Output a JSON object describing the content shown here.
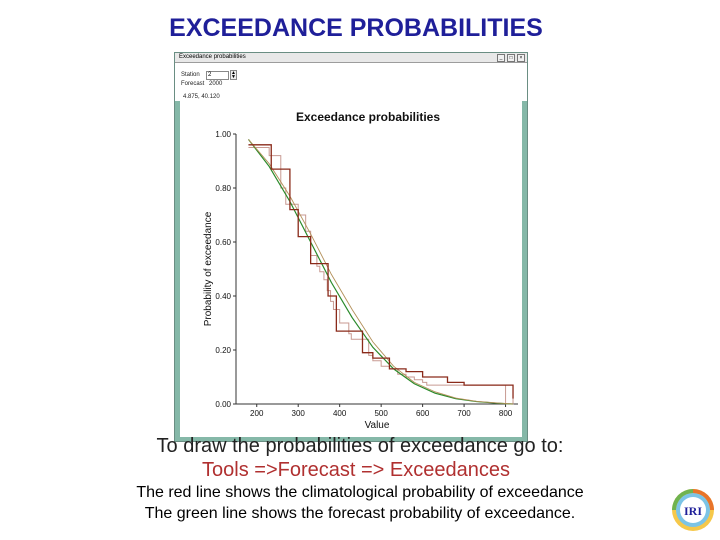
{
  "slide": {
    "title": "EXCEEDANCE PROBABILITIES",
    "instruction": "To draw the probabilities of exceedance go to:",
    "menu_path": "Tools =>Forecast => Exceedances",
    "note_red": "The red line shows the climatological probability of exceedance",
    "note_green": "The green line shows the forecast probability of exceedance."
  },
  "window": {
    "title": "Exceedance probabilities",
    "station_label": "Station",
    "station_value": "2",
    "forecast_label": "Forecast",
    "forecast_value": "2000",
    "coords": "4.875, 40.120"
  },
  "logo_text": "IRI",
  "colors": {
    "title": "#1f1f99",
    "menu_path": "#b03030",
    "window_bg": "#85b8a8",
    "climatology": "#a03020",
    "forecast": "#2a8a2a"
  },
  "chart_data": {
    "type": "line",
    "title": "Exceedance probabilities",
    "xlabel": "Value",
    "ylabel": "Probability of exceedance",
    "xlim": [
      150,
      830
    ],
    "ylim": [
      0,
      1
    ],
    "xticks": [
      "200",
      "300",
      "400",
      "500",
      "600",
      "700",
      "800"
    ],
    "yticks": [
      "0.00",
      "0.20",
      "0.40",
      "0.60",
      "0.80",
      "1.00"
    ],
    "series": [
      {
        "style": "step-empirical",
        "x": [
          180,
          230,
          258,
          270,
          300,
          318,
          330,
          345,
          352,
          362,
          370,
          378,
          385,
          400,
          422,
          428,
          470,
          480,
          500,
          520,
          540,
          560,
          580,
          600,
          610,
          645,
          660,
          700,
          710,
          730,
          760,
          800,
          818
        ],
        "y": [
          0.95,
          0.92,
          0.8,
          0.74,
          0.7,
          0.64,
          0.55,
          0.51,
          0.49,
          0.46,
          0.42,
          0.38,
          0.35,
          0.3,
          0.26,
          0.24,
          0.18,
          0.16,
          0.14,
          0.13,
          0.11,
          0.1,
          0.09,
          0.08,
          0.07,
          0.07,
          0.07,
          0.07,
          0.07,
          0.07,
          0.07,
          0.0,
          0.02
        ]
      },
      {
        "style": "smooth-fitted",
        "x": [
          180,
          230,
          280,
          330,
          380,
          430,
          480,
          530,
          580,
          630,
          680,
          730,
          780,
          818
        ],
        "y": [
          0.98,
          0.88,
          0.75,
          0.6,
          0.45,
          0.32,
          0.21,
          0.13,
          0.075,
          0.04,
          0.02,
          0.009,
          0.003,
          0.0
        ]
      },
      {
        "style": "smooth-fitted",
        "x": [
          180,
          230,
          280,
          330,
          380,
          430,
          480,
          530,
          580,
          630,
          680,
          730,
          780,
          818
        ],
        "y": [
          0.98,
          0.89,
          0.77,
          0.63,
          0.48,
          0.35,
          0.23,
          0.14,
          0.08,
          0.045,
          0.022,
          0.01,
          0.004,
          0.0
        ]
      },
      {
        "style": "step-empirical",
        "x": [
          180,
          235,
          280,
          300,
          330,
          372,
          392,
          455,
          480,
          520,
          560,
          600,
          660,
          700,
          760,
          818
        ],
        "y": [
          0.96,
          0.87,
          0.72,
          0.62,
          0.52,
          0.4,
          0.27,
          0.19,
          0.17,
          0.13,
          0.12,
          0.1,
          0.08,
          0.07,
          0.07,
          0.02
        ]
      }
    ]
  }
}
